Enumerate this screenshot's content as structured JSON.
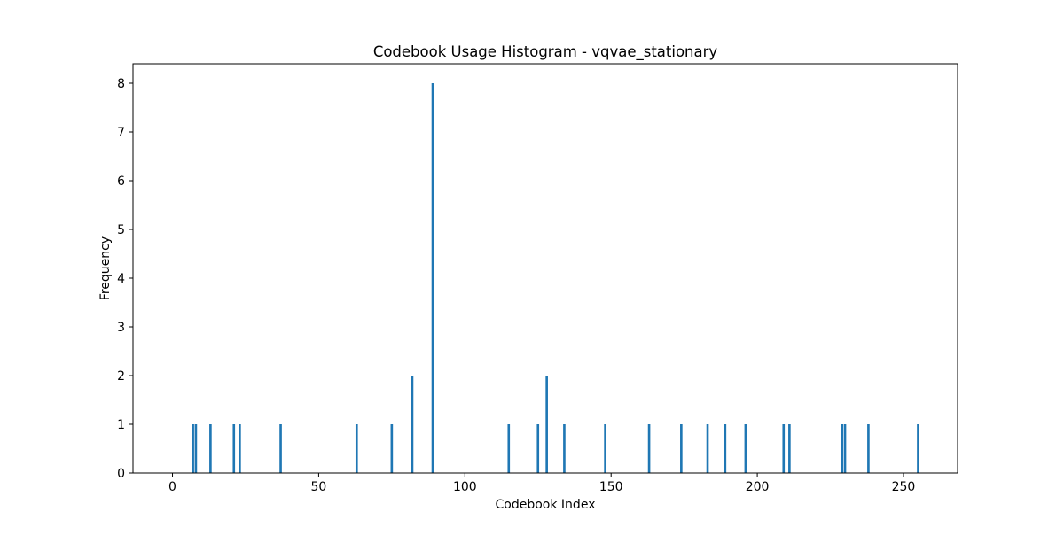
{
  "chart_data": {
    "type": "bar",
    "title": "Codebook Usage Histogram - vqvae_stationary",
    "xlabel": "Codebook Index",
    "ylabel": "Frequency",
    "xlim": [
      -13.5,
      268.5
    ],
    "ylim": [
      0,
      8.4
    ],
    "xticks": [
      0,
      50,
      100,
      150,
      200,
      250
    ],
    "yticks": [
      0,
      1,
      2,
      3,
      4,
      5,
      6,
      7,
      8
    ],
    "grid": false,
    "bar_width": 0.8,
    "bar_color": "#1f77b4",
    "x": [
      7,
      8,
      13,
      21,
      23,
      37,
      63,
      75,
      82,
      89,
      115,
      125,
      128,
      134,
      148,
      163,
      174,
      183,
      189,
      196,
      209,
      211,
      229,
      230,
      238,
      255
    ],
    "values": [
      1,
      1,
      1,
      1,
      1,
      1,
      1,
      1,
      2,
      8,
      1,
      1,
      2,
      1,
      1,
      1,
      1,
      1,
      1,
      1,
      1,
      1,
      1,
      1,
      1,
      1
    ]
  }
}
